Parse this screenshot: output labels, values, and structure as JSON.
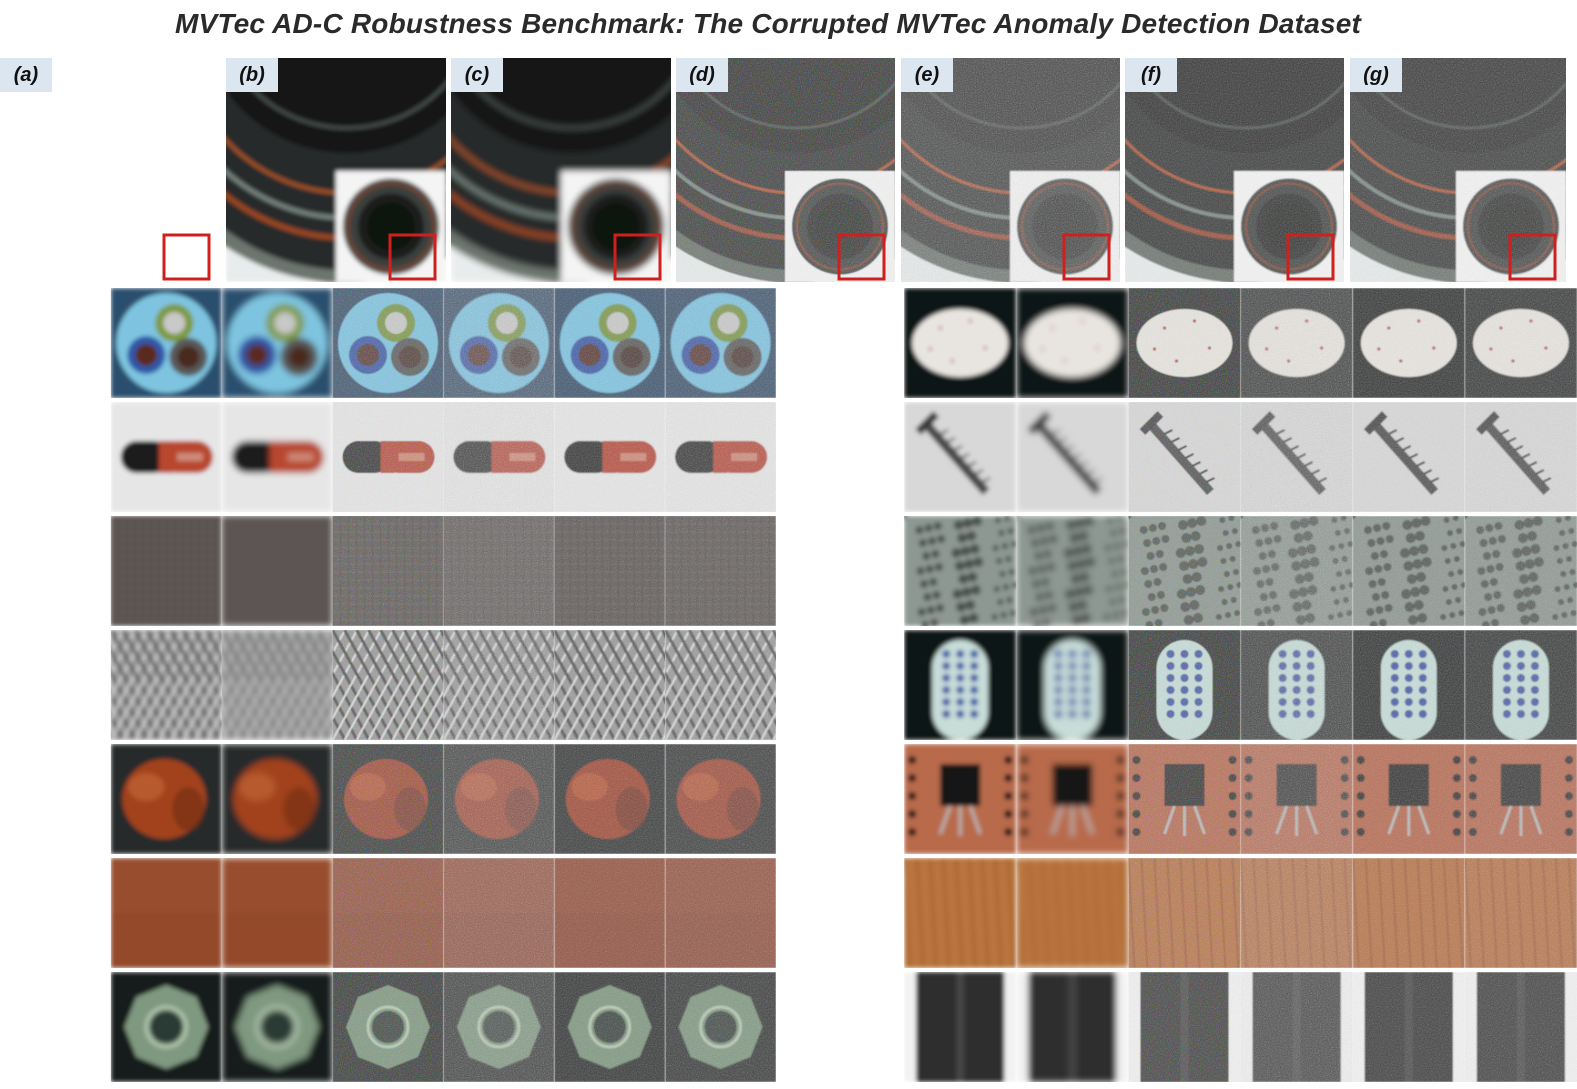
{
  "title": "MVTec AD-C Robustness Benchmark: The Corrupted MVTec Anomaly Detection Dataset",
  "panel_labels": [
    "(a)",
    "(b)",
    "(c)",
    "(d)",
    "(e)",
    "(f)",
    "(g)"
  ],
  "hero_object": "bottle",
  "category_grid": {
    "left_column": [
      "cable",
      "capsule",
      "carpet",
      "grid",
      "hazelnut",
      "leather",
      "metal_nut"
    ],
    "right_column": [
      "pill",
      "screw",
      "tile",
      "toothbrush",
      "transistor",
      "wood",
      "zipper"
    ]
  },
  "colors": {
    "label_background": "#dce6f1",
    "zoom_box": "#d0201e",
    "title": "#2a2a2a"
  }
}
